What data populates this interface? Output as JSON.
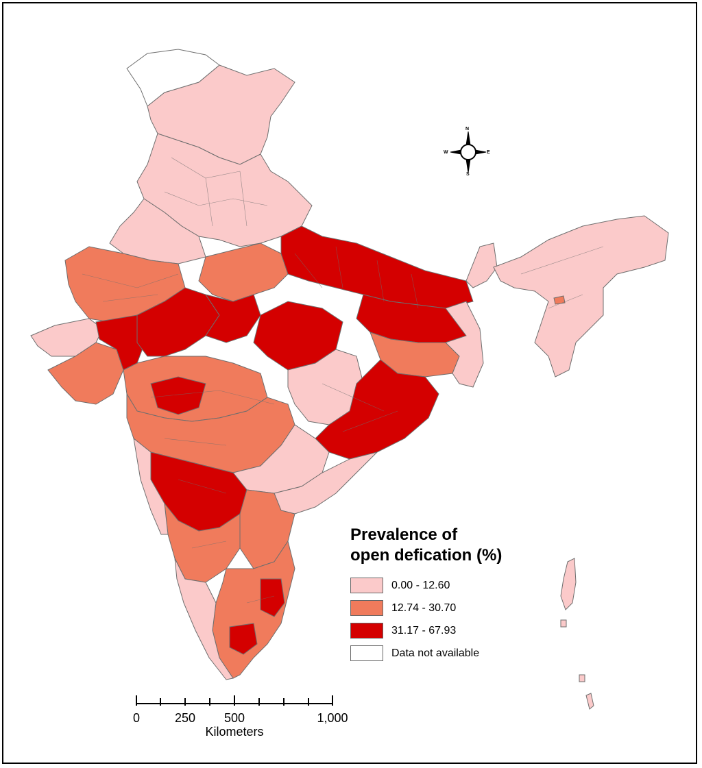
{
  "legend": {
    "title_line1": "Prevalence of",
    "title_line2": "open defication (%)",
    "items": [
      {
        "label": "0.00 - 12.60",
        "color": "#fbcaca"
      },
      {
        "label": "12.74 - 30.70",
        "color": "#f07b5c"
      },
      {
        "label": "31.17 - 67.93",
        "color": "#d40000"
      },
      {
        "label": "Data not available",
        "color": "#ffffff"
      }
    ]
  },
  "scale_bar": {
    "ticks": [
      "0",
      "250",
      "500",
      "1,000"
    ],
    "unit": "Kilometers"
  },
  "compass": {
    "n": "N",
    "s": "S",
    "e": "E",
    "w": "W"
  },
  "colors": {
    "border": "#6e6e6e",
    "frame": "#000000"
  }
}
